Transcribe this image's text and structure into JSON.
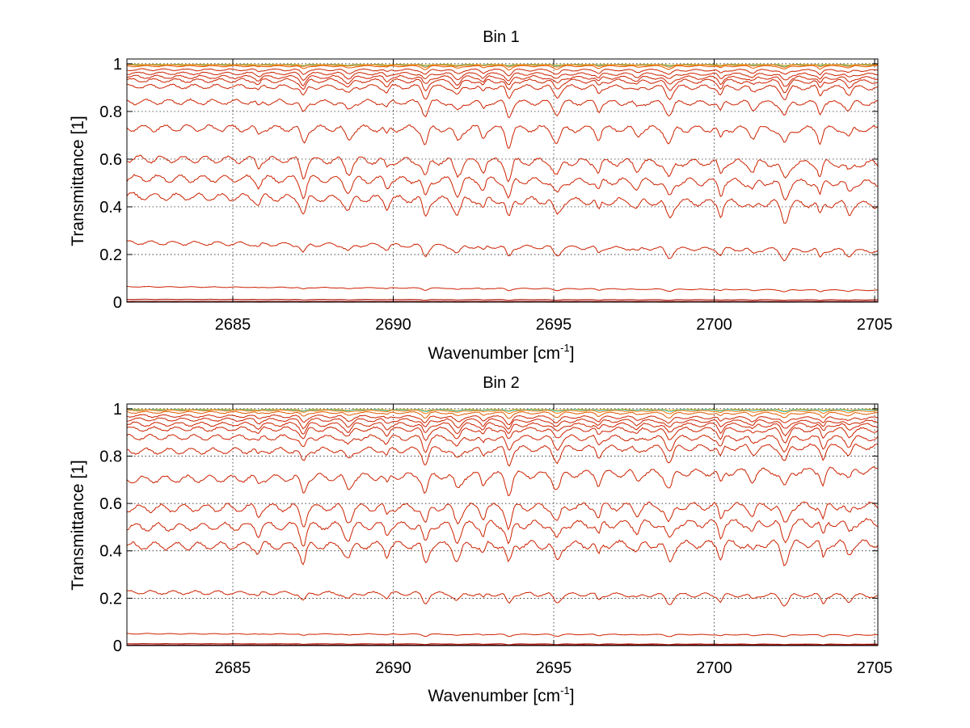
{
  "figure": {
    "background": "#ffffff"
  },
  "chart_data": [
    {
      "type": "line",
      "title": "Bin 1",
      "xlabel": "Wavenumber [cm",
      "xlabel_sup": "-1",
      "xlabel_end": "]",
      "ylabel": "Transmittance [1]",
      "xlim": [
        2681.7,
        2705.1
      ],
      "ylim": [
        0,
        1.02
      ],
      "xticks": [
        2685,
        2690,
        2695,
        2700,
        2705
      ],
      "xtick_labels": [
        "2685",
        "2690",
        "2695",
        "2700",
        "2705"
      ],
      "yticks": [
        0,
        0.2,
        0.4,
        0.6,
        0.8,
        1
      ],
      "ytick_labels": [
        "0",
        "0.2",
        "0.4",
        "0.6",
        "0.8",
        "1"
      ],
      "grid": true,
      "absorption_lines": [
        2685.8,
        2687.2,
        2688.6,
        2689.8,
        2691.0,
        2692.0,
        2692.8,
        2693.6,
        2695.1,
        2696.4,
        2697.6,
        2698.6,
        2700.2,
        2701.2,
        2702.2,
        2703.3,
        2704.2
      ],
      "series": [
        {
          "color": "#e8a600",
          "values_at_ends": [
            0.997,
            0.997
          ],
          "depth": 0.003
        },
        {
          "color": "#2ec4c4",
          "values_at_ends": [
            0.995,
            0.995
          ],
          "depth": 0.004
        },
        {
          "color": "#ff7a00",
          "values_at_ends": [
            0.994,
            0.994
          ],
          "depth": 0.006
        },
        {
          "color": "#e05a00",
          "values_at_ends": [
            0.99,
            0.99
          ],
          "depth": 0.01
        },
        {
          "color": "#cc2200",
          "values_at_ends": [
            0.975,
            0.972
          ],
          "depth": 0.015
        },
        {
          "color": "#cc2200",
          "values_at_ends": [
            0.96,
            0.955
          ],
          "depth": 0.02
        },
        {
          "color": "#cc2200",
          "values_at_ends": [
            0.945,
            0.94
          ],
          "depth": 0.025
        },
        {
          "color": "#cc2200",
          "values_at_ends": [
            0.93,
            0.925
          ],
          "depth": 0.03
        },
        {
          "color": "#cc2200",
          "values_at_ends": [
            0.905,
            0.9
          ],
          "depth": 0.035
        },
        {
          "color": "#cc2200",
          "values_at_ends": [
            0.84,
            0.835
          ],
          "depth": 0.04
        },
        {
          "color": "#cc2200",
          "values_at_ends": [
            0.73,
            0.725
          ],
          "depth": 0.05
        },
        {
          "color": "#cc2200",
          "values_at_ends": [
            0.6,
            0.58
          ],
          "depth": 0.055
        },
        {
          "color": "#cc2200",
          "values_at_ends": [
            0.52,
            0.5
          ],
          "depth": 0.055
        },
        {
          "color": "#cc2200",
          "values_at_ends": [
            0.445,
            0.41
          ],
          "depth": 0.055
        },
        {
          "color": "#cc2200",
          "values_at_ends": [
            0.25,
            0.215
          ],
          "depth": 0.03
        },
        {
          "color": "#cc2200",
          "values_at_ends": [
            0.065,
            0.05
          ],
          "depth": 0.006
        },
        {
          "color": "#aa1100",
          "values_at_ends": [
            0.012,
            0.01
          ],
          "depth": 0.002
        },
        {
          "color": "#880000",
          "values_at_ends": [
            0.004,
            0.004
          ],
          "depth": 0.001
        }
      ]
    },
    {
      "type": "line",
      "title": "Bin 2",
      "xlabel": "Wavenumber [cm",
      "xlabel_sup": "-1",
      "xlabel_end": "]",
      "ylabel": "Transmittance [1]",
      "xlim": [
        2681.7,
        2705.1
      ],
      "ylim": [
        0,
        1.02
      ],
      "xticks": [
        2685,
        2690,
        2695,
        2700,
        2705
      ],
      "xtick_labels": [
        "2685",
        "2690",
        "2695",
        "2700",
        "2705"
      ],
      "yticks": [
        0,
        0.2,
        0.4,
        0.6,
        0.8,
        1
      ],
      "ytick_labels": [
        "0",
        "0.2",
        "0.4",
        "0.6",
        "0.8",
        "1"
      ],
      "grid": true,
      "absorption_lines": [
        2685.8,
        2687.2,
        2688.6,
        2689.8,
        2691.0,
        2692.0,
        2692.8,
        2693.6,
        2695.1,
        2696.4,
        2697.6,
        2698.6,
        2700.2,
        2701.2,
        2702.2,
        2703.4,
        2704.2
      ],
      "series": [
        {
          "color": "#e8a600",
          "values_at_ends": [
            0.997,
            0.997
          ],
          "depth": 0.004
        },
        {
          "color": "#2ec4c4",
          "values_at_ends": [
            0.995,
            0.995
          ],
          "depth": 0.005
        },
        {
          "color": "#ff7a00",
          "values_at_ends": [
            0.993,
            0.99
          ],
          "depth": 0.008
        },
        {
          "color": "#e05a00",
          "values_at_ends": [
            0.985,
            0.98
          ],
          "depth": 0.015
        },
        {
          "color": "#cc2200",
          "values_at_ends": [
            0.97,
            0.96
          ],
          "depth": 0.02
        },
        {
          "color": "#cc2200",
          "values_at_ends": [
            0.955,
            0.945
          ],
          "depth": 0.025
        },
        {
          "color": "#cc2200",
          "values_at_ends": [
            0.935,
            0.93
          ],
          "depth": 0.03
        },
        {
          "color": "#cc2200",
          "values_at_ends": [
            0.915,
            0.91
          ],
          "depth": 0.035
        },
        {
          "color": "#cc2200",
          "values_at_ends": [
            0.88,
            0.875
          ],
          "depth": 0.04
        },
        {
          "color": "#cc2200",
          "values_at_ends": [
            0.82,
            0.84
          ],
          "depth": 0.045
        },
        {
          "color": "#cc2200",
          "values_at_ends": [
            0.7,
            0.74
          ],
          "depth": 0.055
        },
        {
          "color": "#cc2200",
          "values_at_ends": [
            0.58,
            0.59
          ],
          "depth": 0.06
        },
        {
          "color": "#cc2200",
          "values_at_ends": [
            0.5,
            0.52
          ],
          "depth": 0.06
        },
        {
          "color": "#cc2200",
          "values_at_ends": [
            0.42,
            0.43
          ],
          "depth": 0.06
        },
        {
          "color": "#cc2200",
          "values_at_ends": [
            0.225,
            0.21
          ],
          "depth": 0.03
        },
        {
          "color": "#cc2200",
          "values_at_ends": [
            0.05,
            0.045
          ],
          "depth": 0.006
        },
        {
          "color": "#aa1100",
          "values_at_ends": [
            0.008,
            0.006
          ],
          "depth": 0.002
        },
        {
          "color": "#880000",
          "values_at_ends": [
            0.003,
            0.003
          ],
          "depth": 0.001
        }
      ]
    }
  ]
}
